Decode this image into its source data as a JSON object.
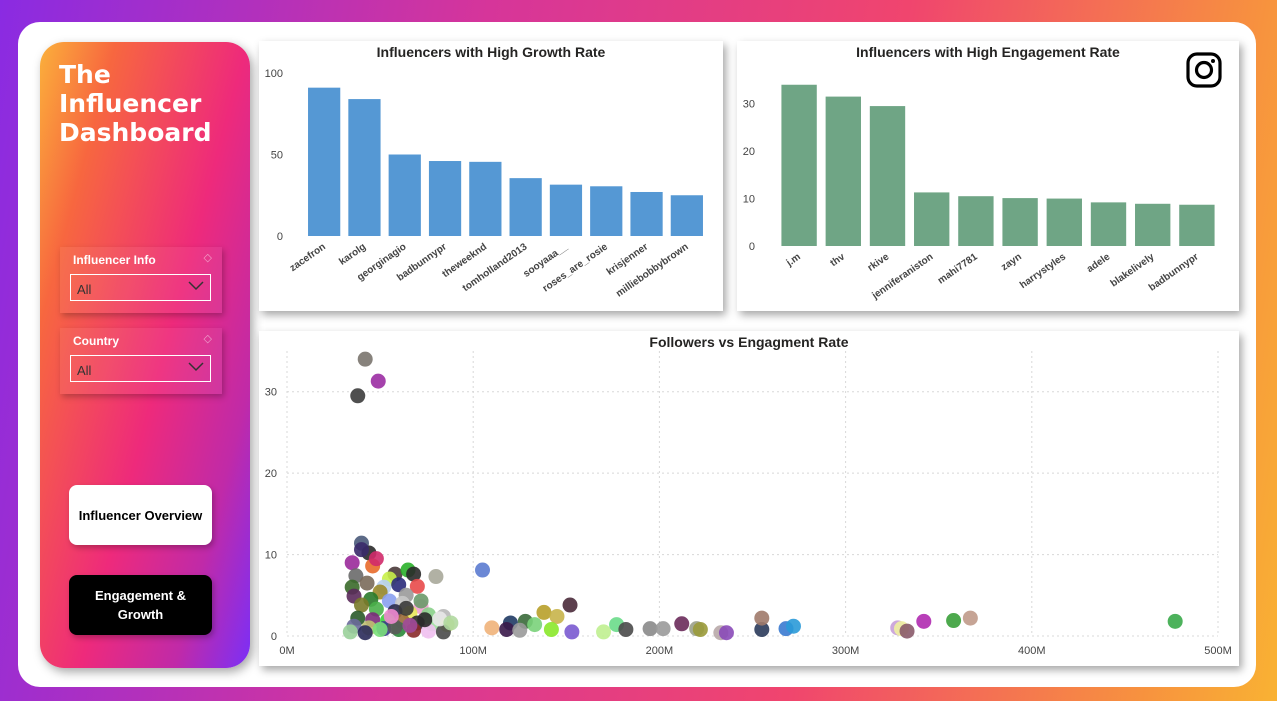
{
  "sidebar": {
    "title_lines": [
      "The",
      "Influencer",
      "Dashboard"
    ],
    "slicers": [
      {
        "label": "Influencer Info",
        "value": "All"
      },
      {
        "label": "Country",
        "value": "All"
      }
    ],
    "nav": {
      "overview_label": "Influencer Overview",
      "engagement_line1": "Engagement &",
      "engagement_line2": "Growth"
    }
  },
  "icons": {
    "instagram": "instagram-icon",
    "dropdown": "chevron-down-icon",
    "eraser": "eraser-icon"
  },
  "colors": {
    "growth_bar": "#5598d4",
    "engagement_bar": "#6fa585"
  },
  "chart_data": [
    {
      "type": "bar",
      "title": "Influencers with High Growth Rate",
      "categories": [
        "zacefron",
        "karolg",
        "georginagio",
        "badbunnypr",
        "theweeknd",
        "tomholland2013",
        "sooyaaa__",
        "roses_are_rosie",
        "krisjenner",
        "milliebobbybrown"
      ],
      "values": [
        91,
        84,
        50,
        46,
        45.5,
        35.5,
        31.5,
        30.5,
        27,
        25
      ],
      "ylim": [
        0,
        100
      ],
      "yticks": [
        0,
        50,
        100
      ]
    },
    {
      "type": "bar",
      "title": "Influencers with High Engagement Rate",
      "categories": [
        "j.m",
        "thv",
        "rkive",
        "jenniferaniston",
        "mahi7781",
        "zayn",
        "harrystyles",
        "adele",
        "blakelively",
        "badbunnypr"
      ],
      "values": [
        34,
        31.5,
        29.5,
        11.3,
        10.5,
        10.1,
        10,
        9.2,
        8.9,
        8.7
      ],
      "ylim": [
        0,
        35
      ],
      "yticks": [
        0,
        10,
        20,
        30
      ]
    },
    {
      "type": "scatter",
      "title": "Followers vs Engagment Rate",
      "xlim": [
        0,
        500000000
      ],
      "ylim": [
        0,
        35
      ],
      "xticks": [
        "0M",
        "100M",
        "200M",
        "300M",
        "400M",
        "500M"
      ],
      "yticks": [
        0,
        10,
        20,
        30
      ],
      "grid": true,
      "points": [
        [
          38,
          29.5,
          "#3c3c3c"
        ],
        [
          42,
          34,
          "#7a746e"
        ],
        [
          49,
          31.3,
          "#9b2ea3"
        ],
        [
          105,
          8.1,
          "#5b7bd0"
        ],
        [
          152,
          3.8,
          "#4a2a3a"
        ],
        [
          138,
          2.9,
          "#b8a02a"
        ],
        [
          145,
          2.4,
          "#c8b44a"
        ],
        [
          120,
          1.6,
          "#1f3a64"
        ],
        [
          128,
          1.8,
          "#3a6a3a"
        ],
        [
          133,
          1.4,
          "#7ad27a"
        ],
        [
          110,
          1.0,
          "#f0b27a"
        ],
        [
          118,
          0.8,
          "#3a1a4a"
        ],
        [
          125,
          0.7,
          "#9a9a9a"
        ],
        [
          142,
          0.8,
          "#8ae82a"
        ],
        [
          153,
          0.5,
          "#7a5ad0"
        ],
        [
          170,
          0.5,
          "#c0f090"
        ],
        [
          177,
          1.4,
          "#6adc8a"
        ],
        [
          182,
          0.8,
          "#4a4a4a"
        ],
        [
          195,
          0.9,
          "#8a8a8a"
        ],
        [
          202,
          0.9,
          "#9a9a9a"
        ],
        [
          212,
          1.5,
          "#6a2a5a"
        ],
        [
          220,
          0.9,
          "#9aa08a"
        ],
        [
          222,
          0.8,
          "#9a9a3a"
        ],
        [
          233,
          0.4,
          "#b8a8a8"
        ],
        [
          236,
          0.4,
          "#8a4ab8"
        ],
        [
          255,
          0.8,
          "#2a3a5a"
        ],
        [
          255,
          2.2,
          "#a07a6a"
        ],
        [
          268,
          0.9,
          "#3a7ad0"
        ],
        [
          272,
          1.2,
          "#2a9ad8"
        ],
        [
          328,
          1.0,
          "#c8a0d8"
        ],
        [
          330,
          0.9,
          "#f0f0a0"
        ],
        [
          333,
          0.6,
          "#8a5a6a"
        ],
        [
          342,
          1.8,
          "#b02ab0"
        ],
        [
          358,
          1.9,
          "#3aa03a"
        ],
        [
          367,
          2.2,
          "#c09a8a"
        ],
        [
          477,
          1.8,
          "#3aaa4a"
        ],
        [
          40,
          11.4,
          "#4a5a7a"
        ],
        [
          44,
          10.2,
          "#2a2a2a"
        ],
        [
          40,
          10.6,
          "#3a2a6a"
        ],
        [
          35,
          9.0,
          "#9a2a9a"
        ],
        [
          46,
          8.6,
          "#e86a2a"
        ],
        [
          48,
          9.5,
          "#d02a6a"
        ],
        [
          37,
          7.4,
          "#6a6a6a"
        ],
        [
          58,
          7.6,
          "#4a3a3a"
        ],
        [
          65,
          8.1,
          "#2ab02a"
        ],
        [
          68,
          7.6,
          "#2a2a2a"
        ],
        [
          55,
          7.0,
          "#c8f04a"
        ],
        [
          80,
          7.3,
          "#a8a89a"
        ],
        [
          43,
          6.5,
          "#7a6a5a"
        ],
        [
          52,
          6.0,
          "#b8d0f0"
        ],
        [
          60,
          6.3,
          "#2a2a7a"
        ],
        [
          70,
          6.1,
          "#e84a4a"
        ],
        [
          35,
          6.0,
          "#3a6a2a"
        ],
        [
          50,
          5.4,
          "#9a8a2a"
        ],
        [
          64,
          5.0,
          "#9a9a9a"
        ],
        [
          36,
          4.9,
          "#5a2a5a"
        ],
        [
          45,
          4.5,
          "#2a7a2a"
        ],
        [
          55,
          4.3,
          "#8aa0f0"
        ],
        [
          62,
          4.0,
          "#c8c8c8"
        ],
        [
          72,
          3.6,
          "#f0a0d0"
        ],
        [
          40,
          3.8,
          "#7a7a2a"
        ],
        [
          48,
          3.3,
          "#4ab04a"
        ],
        [
          58,
          3.0,
          "#2a2a4a"
        ],
        [
          66,
          2.8,
          "#e8e85a"
        ],
        [
          76,
          2.6,
          "#8ad08a"
        ],
        [
          84,
          2.4,
          "#b8b8b8"
        ],
        [
          38,
          2.2,
          "#2a5a2a"
        ],
        [
          46,
          2.0,
          "#7a2a7a"
        ],
        [
          54,
          1.9,
          "#3ad03a"
        ],
        [
          62,
          1.8,
          "#9a6a3a"
        ],
        [
          70,
          1.6,
          "#2a2a2a"
        ],
        [
          78,
          1.5,
          "#a0e0a0"
        ],
        [
          86,
          1.4,
          "#d0e86a"
        ],
        [
          36,
          1.2,
          "#6a6a9a"
        ],
        [
          44,
          1.0,
          "#c0c070"
        ],
        [
          52,
          0.9,
          "#3a3a8a"
        ],
        [
          60,
          0.8,
          "#2a8a3a"
        ],
        [
          68,
          0.7,
          "#8a2a2a"
        ],
        [
          76,
          0.6,
          "#f0c0f0"
        ],
        [
          84,
          0.5,
          "#4a4a4a"
        ],
        [
          34,
          0.5,
          "#9ad09a"
        ],
        [
          42,
          0.4,
          "#2a2a5a"
        ],
        [
          50,
          0.8,
          "#7ae07a"
        ],
        [
          58,
          1.1,
          "#5a5a5a"
        ],
        [
          66,
          1.3,
          "#a04a9a"
        ],
        [
          74,
          2.0,
          "#2a2a2a"
        ],
        [
          82,
          2.1,
          "#e8e8e8"
        ],
        [
          88,
          1.6,
          "#b0d8a0"
        ],
        [
          56,
          2.4,
          "#f08ad0"
        ],
        [
          64,
          3.4,
          "#3a3a3a"
        ],
        [
          72,
          4.3,
          "#6a9a6a"
        ]
      ]
    }
  ]
}
